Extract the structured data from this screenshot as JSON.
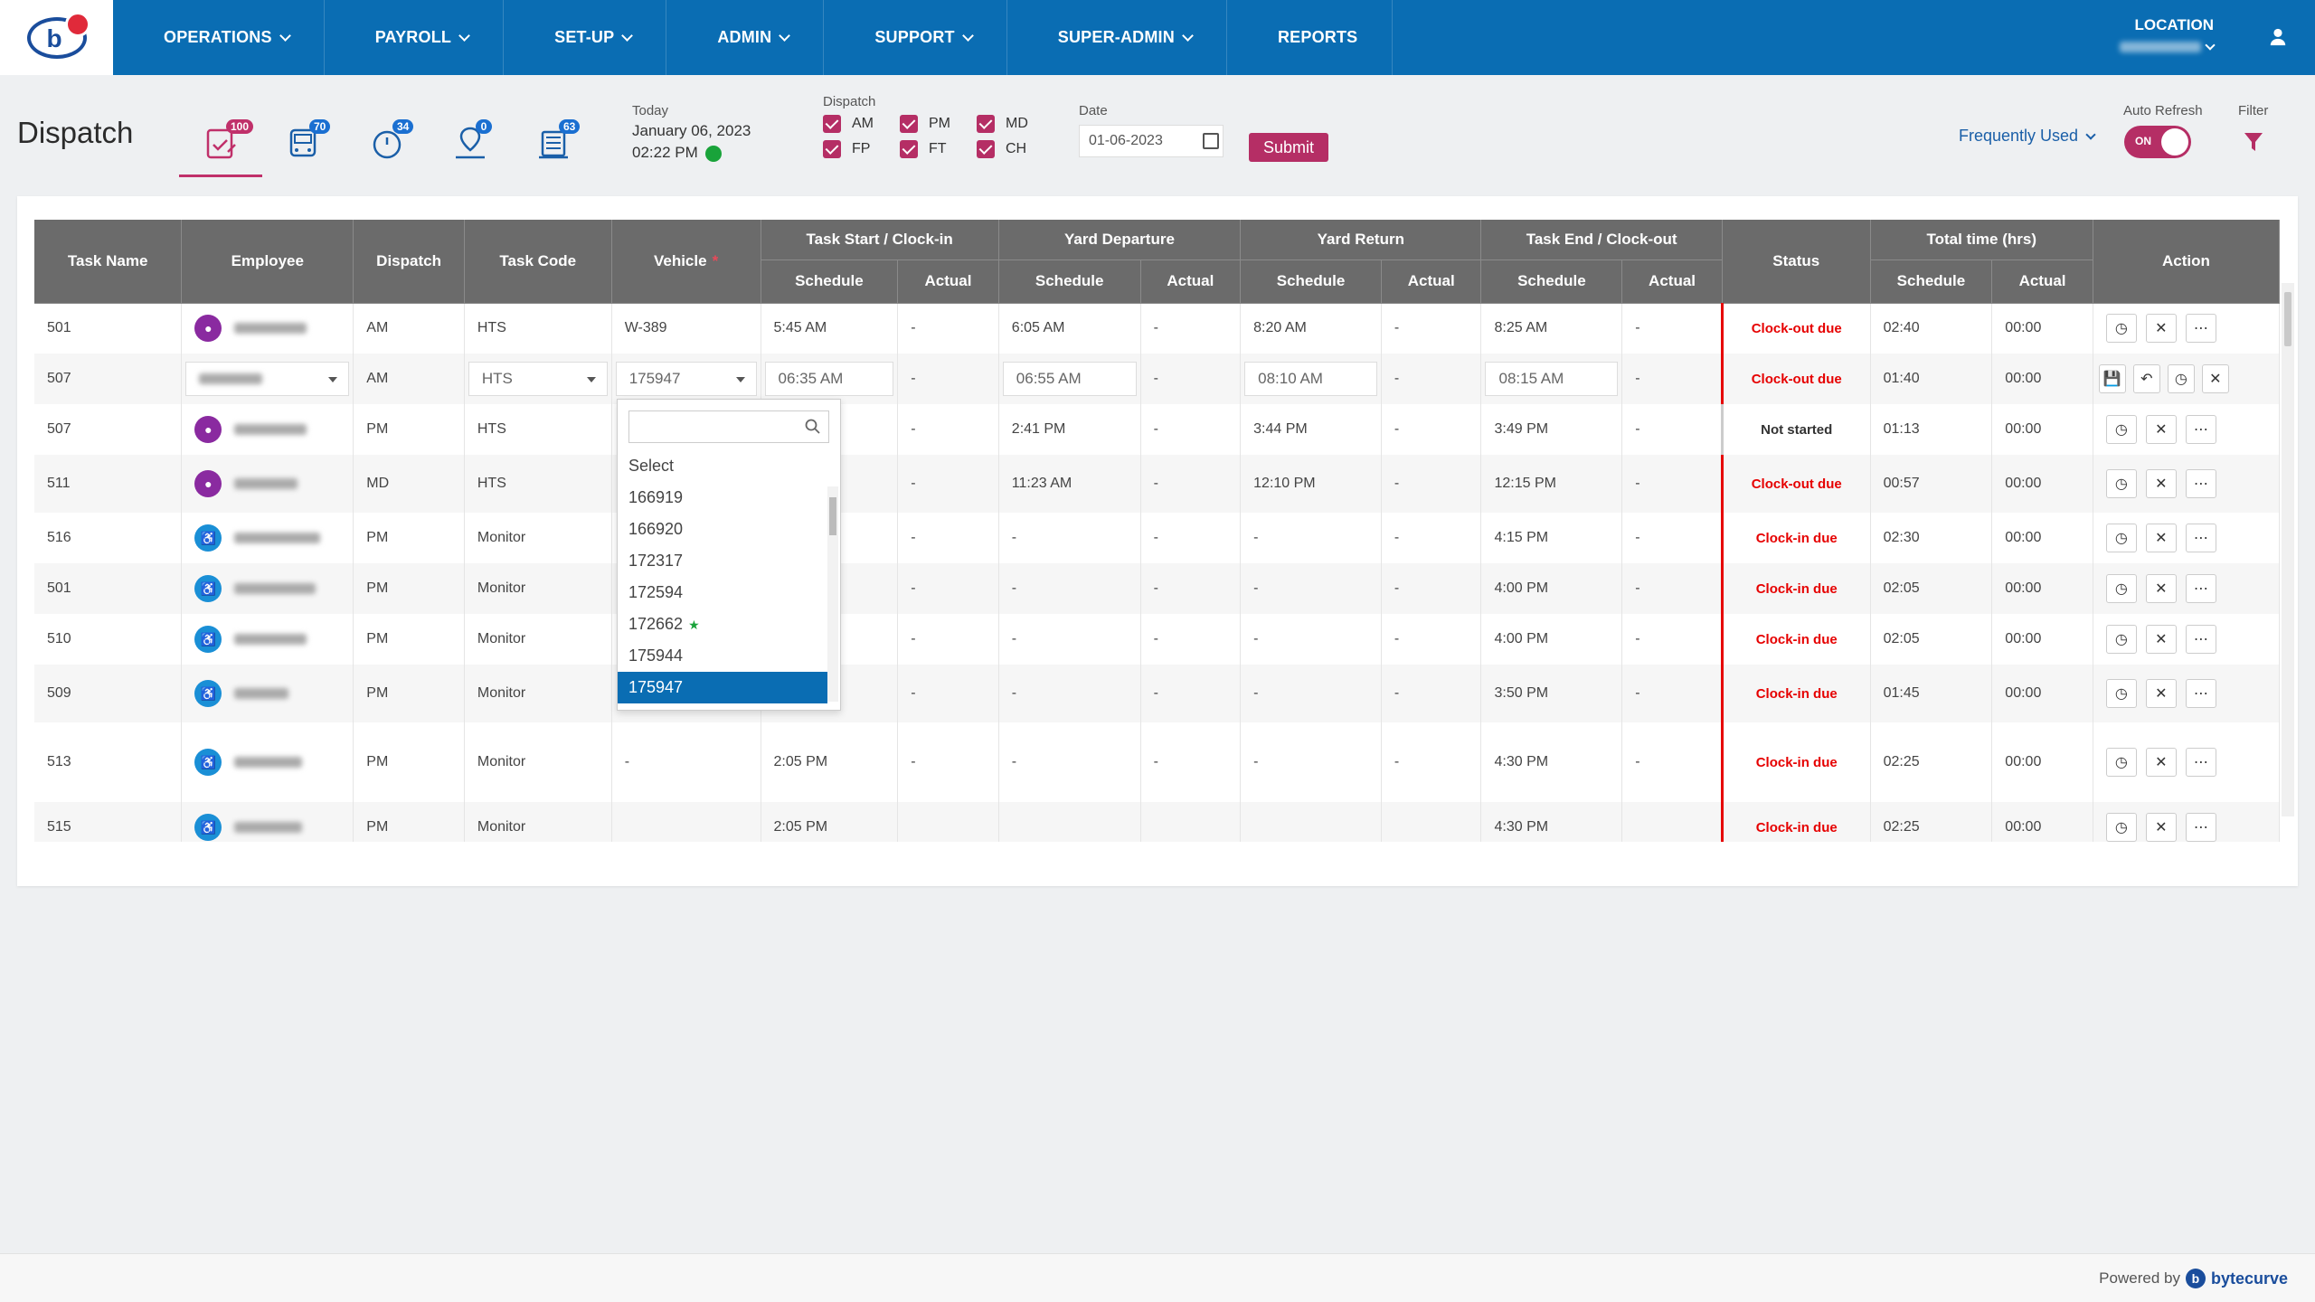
{
  "nav": {
    "items": [
      {
        "label": "OPERATIONS",
        "has_menu": true
      },
      {
        "label": "PAYROLL",
        "has_menu": true
      },
      {
        "label": "SET-UP",
        "has_menu": true
      },
      {
        "label": "ADMIN",
        "has_menu": true
      },
      {
        "label": "SUPPORT",
        "has_menu": true
      },
      {
        "label": "SUPER-ADMIN",
        "has_menu": true
      },
      {
        "label": "REPORTS",
        "has_menu": false
      }
    ],
    "location_label": "LOCATION"
  },
  "header": {
    "title": "Dispatch",
    "badges": [
      {
        "icon": "clipboard-check-icon",
        "count": "100"
      },
      {
        "icon": "bus-icon",
        "count": "70"
      },
      {
        "icon": "timer-icon",
        "count": "34"
      },
      {
        "icon": "map-pin-person-icon",
        "count": "0"
      },
      {
        "icon": "garage-bus-icon",
        "count": "63"
      }
    ],
    "today_label": "Today",
    "today_date": "January 06, 2023",
    "today_time": "02:22 PM",
    "dispatch_label": "Dispatch",
    "dispatch_options": [
      "AM",
      "PM",
      "MD",
      "FP",
      "FT",
      "CH"
    ],
    "date_label": "Date",
    "date_value": "01-06-2023",
    "submit_label": "Submit",
    "frequently_used": "Frequently Used",
    "auto_refresh_label": "Auto Refresh",
    "auto_refresh_state": "ON",
    "filter_label": "Filter"
  },
  "table": {
    "headers": {
      "task_name": "Task Name",
      "employee": "Employee",
      "dispatch": "Dispatch",
      "task_code": "Task Code",
      "vehicle": "Vehicle",
      "task_start": "Task Start / Clock-in",
      "yard_departure": "Yard Departure",
      "yard_return": "Yard Return",
      "task_end": "Task End / Clock-out",
      "status": "Status",
      "total_time": "Total time (hrs)",
      "action": "Action",
      "schedule": "Schedule",
      "actual": "Actual"
    },
    "rows": [
      {
        "task": "501",
        "dispatch": "AM",
        "code": "HTS",
        "vehicle": "W-389",
        "start_s": "5:45 AM",
        "start_a": "-",
        "dep_s": "6:05 AM",
        "dep_a": "-",
        "ret_s": "8:20 AM",
        "ret_a": "-",
        "end_s": "8:25 AM",
        "end_a": "-",
        "status": "Clock-out due",
        "tot_s": "02:40",
        "tot_a": "00:00"
      },
      {
        "task": "507",
        "dispatch": "AM",
        "code": "HTS",
        "vehicle": "175947",
        "start_s": "06:35 AM",
        "start_a": "-",
        "dep_s": "06:55 AM",
        "dep_a": "-",
        "ret_s": "08:10 AM",
        "ret_a": "-",
        "end_s": "08:15 AM",
        "end_a": "-",
        "status": "Clock-out due",
        "tot_s": "01:40",
        "tot_a": "00:00"
      },
      {
        "task": "507",
        "dispatch": "PM",
        "code": "HTS",
        "vehicle": "",
        "start_s": "",
        "start_a": "-",
        "dep_s": "2:41 PM",
        "dep_a": "-",
        "ret_s": "3:44 PM",
        "ret_a": "-",
        "end_s": "3:49 PM",
        "end_a": "-",
        "status": "Not started",
        "tot_s": "01:13",
        "tot_a": "00:00"
      },
      {
        "task": "511",
        "dispatch": "MD",
        "code": "HTS",
        "vehicle": "",
        "start_s": "",
        "start_a": "-",
        "dep_s": "11:23 AM",
        "dep_a": "-",
        "ret_s": "12:10 PM",
        "ret_a": "-",
        "end_s": "12:15 PM",
        "end_a": "-",
        "status": "Clock-out due",
        "tot_s": "00:57",
        "tot_a": "00:00"
      },
      {
        "task": "516",
        "dispatch": "PM",
        "code": "Monitor",
        "vehicle": "",
        "start_s": "",
        "start_a": "-",
        "dep_s": "-",
        "dep_a": "-",
        "ret_s": "-",
        "ret_a": "-",
        "end_s": "4:15 PM",
        "end_a": "-",
        "status": "Clock-in due",
        "tot_s": "02:30",
        "tot_a": "00:00"
      },
      {
        "task": "501",
        "dispatch": "PM",
        "code": "Monitor",
        "vehicle": "",
        "start_s": "",
        "start_a": "-",
        "dep_s": "-",
        "dep_a": "-",
        "ret_s": "-",
        "ret_a": "-",
        "end_s": "4:00 PM",
        "end_a": "-",
        "status": "Clock-in due",
        "tot_s": "02:05",
        "tot_a": "00:00"
      },
      {
        "task": "510",
        "dispatch": "PM",
        "code": "Monitor",
        "vehicle": "",
        "start_s": "",
        "start_a": "-",
        "dep_s": "-",
        "dep_a": "-",
        "ret_s": "-",
        "ret_a": "-",
        "end_s": "4:00 PM",
        "end_a": "-",
        "status": "Clock-in due",
        "tot_s": "02:05",
        "tot_a": "00:00"
      },
      {
        "task": "509",
        "dispatch": "PM",
        "code": "Monitor",
        "vehicle": "",
        "start_s": "",
        "start_a": "-",
        "dep_s": "-",
        "dep_a": "-",
        "ret_s": "-",
        "ret_a": "-",
        "end_s": "3:50 PM",
        "end_a": "-",
        "status": "Clock-in due",
        "tot_s": "01:45",
        "tot_a": "00:00"
      },
      {
        "task": "513",
        "dispatch": "PM",
        "code": "Monitor",
        "vehicle": "-",
        "start_s": "2:05 PM",
        "start_a": "-",
        "dep_s": "-",
        "dep_a": "-",
        "ret_s": "-",
        "ret_a": "-",
        "end_s": "4:30 PM",
        "end_a": "-",
        "status": "Clock-in due",
        "tot_s": "02:25",
        "tot_a": "00:00"
      },
      {
        "task": "515",
        "dispatch": "PM",
        "code": "Monitor",
        "vehicle": "",
        "start_s": "2:05 PM",
        "start_a": "",
        "dep_s": "",
        "dep_a": "",
        "ret_s": "",
        "ret_a": "",
        "end_s": "4:30 PM",
        "end_a": "",
        "status": "Clock-in due",
        "tot_s": "02:25",
        "tot_a": "00:00"
      }
    ]
  },
  "vehicle_dropdown": {
    "search_placeholder": "",
    "options": [
      "Select",
      "166919",
      "166920",
      "172317",
      "172594",
      "172662",
      "175944",
      "175947"
    ],
    "starred": "172662",
    "selected": "175947"
  },
  "footer": {
    "powered_by": "Powered by",
    "brand": "bytecurve"
  },
  "colors": {
    "nav_bg": "#0a6db3",
    "accent": "#b52e65",
    "status_red": "#e60000",
    "header_gray": "#6b6b6b"
  }
}
